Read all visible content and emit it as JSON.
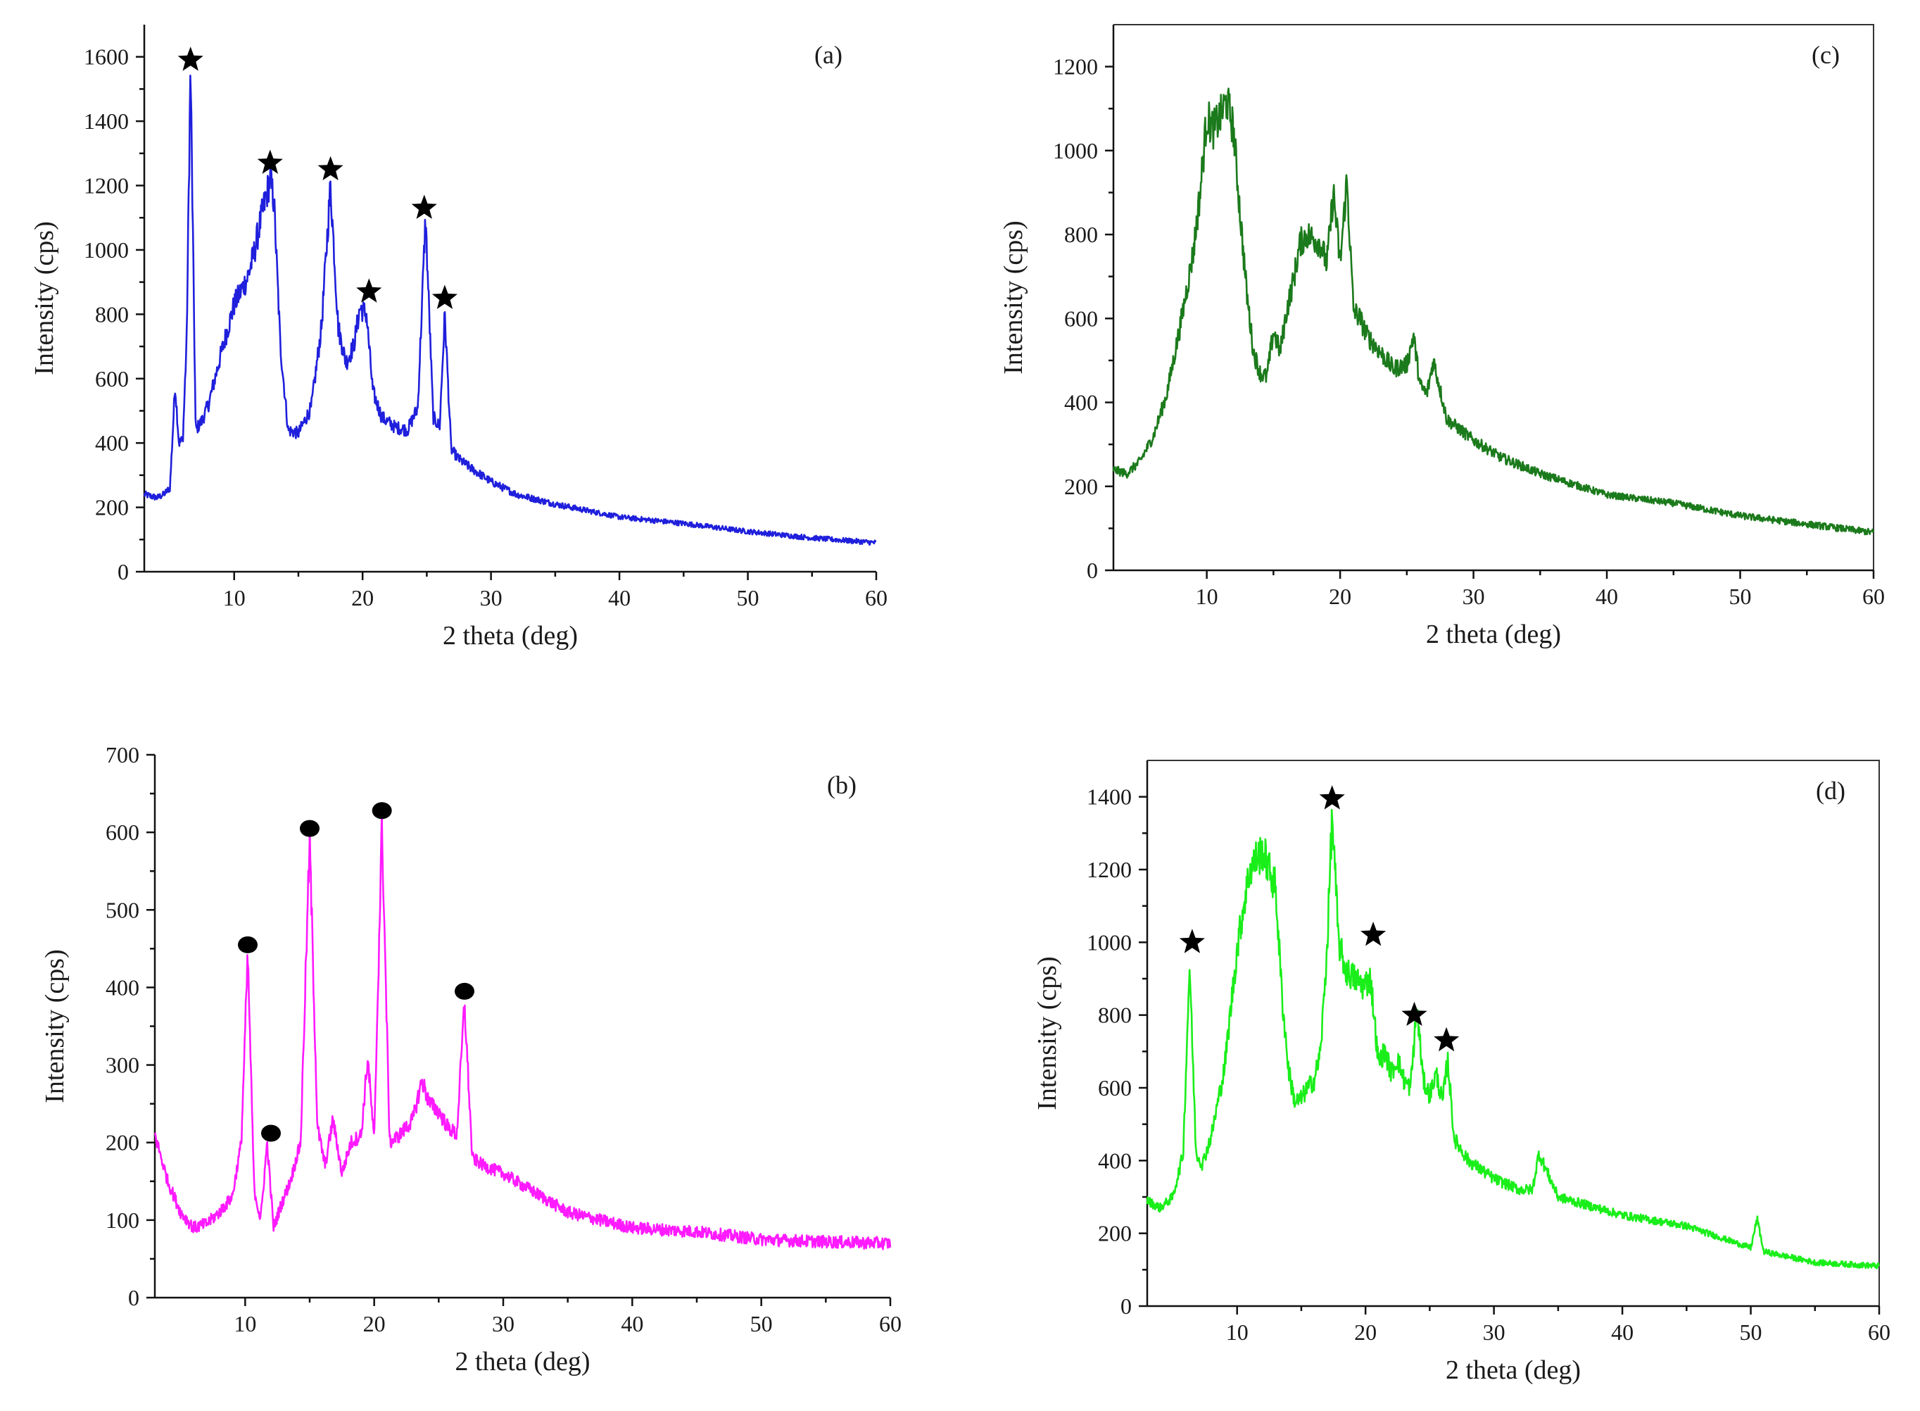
{
  "chart_data": [
    {
      "id": "a",
      "type": "line",
      "panel_label": "(a)",
      "xlabel": "2 theta (deg)",
      "ylabel": "Intensity (cps)",
      "xlim": [
        3,
        60
      ],
      "ylim": [
        0,
        1700
      ],
      "xticks": [
        10,
        20,
        30,
        40,
        50,
        60
      ],
      "yticks": [
        0,
        200,
        400,
        600,
        800,
        1000,
        1200,
        1400,
        1600
      ],
      "color": "#1f1fdc",
      "marker": "star",
      "series": [
        {
          "name": "(a)",
          "x": [
            3,
            3.5,
            4,
            4.5,
            5,
            5.4,
            5.7,
            6.0,
            6.3,
            6.6,
            7.0,
            7.5,
            8,
            9,
            10,
            11,
            11.5,
            12,
            12.4,
            12.8,
            13.1,
            13.6,
            14.2,
            15,
            16,
            16.8,
            17.5,
            18.1,
            18.7,
            19.3,
            19.8,
            20.3,
            20.8,
            21.5,
            22.5,
            23.5,
            24.3,
            24.9,
            25.5,
            26.0,
            26.4,
            26.9,
            27.5,
            28.5,
            30,
            32,
            35,
            40,
            45,
            50,
            55,
            60
          ],
          "y": [
            240,
            235,
            230,
            240,
            260,
            580,
            400,
            410,
            720,
            1570,
            440,
            470,
            520,
            680,
            830,
            910,
            980,
            1080,
            1150,
            1220,
            1150,
            700,
            440,
            430,
            510,
            760,
            1200,
            760,
            650,
            700,
            820,
            800,
            560,
            480,
            450,
            440,
            510,
            1100,
            480,
            450,
            800,
            380,
            350,
            320,
            280,
            240,
            210,
            170,
            150,
            125,
            105,
            90
          ]
        }
      ],
      "annotations": [
        {
          "x": 6.6,
          "y": 1590
        },
        {
          "x": 12.8,
          "y": 1270
        },
        {
          "x": 17.5,
          "y": 1250
        },
        {
          "x": 20.5,
          "y": 870
        },
        {
          "x": 24.8,
          "y": 1130
        },
        {
          "x": 26.4,
          "y": 850
        }
      ]
    },
    {
      "id": "c",
      "type": "line",
      "panel_label": "(c)",
      "xlabel": "2 theta (deg)",
      "ylabel": "Intensity (cps)",
      "xlim": [
        3,
        60
      ],
      "ylim": [
        0,
        1300
      ],
      "xticks": [
        10,
        20,
        30,
        40,
        50,
        60
      ],
      "yticks": [
        0,
        200,
        400,
        600,
        800,
        1000,
        1200
      ],
      "color": "#1b7a1b",
      "marker": "none",
      "series": [
        {
          "name": "(c)",
          "x": [
            3,
            4,
            5,
            6,
            7,
            8,
            9,
            9.5,
            10,
            10.5,
            11,
            11.5,
            12,
            12.5,
            13,
            13.5,
            14,
            14.5,
            15,
            15.5,
            16,
            16.5,
            17,
            17.5,
            18,
            18.5,
            19,
            19.5,
            20,
            20.5,
            21,
            21.5,
            22,
            23,
            24,
            25,
            25.5,
            26,
            26.5,
            27,
            28,
            30,
            32,
            35,
            40,
            45,
            50,
            55,
            60
          ],
          "y": [
            240,
            230,
            260,
            320,
            420,
            580,
            760,
            900,
            1080,
            1050,
            1080,
            1120,
            1050,
            850,
            660,
            520,
            470,
            460,
            570,
            520,
            620,
            690,
            780,
            800,
            790,
            780,
            730,
            900,
            730,
            930,
            620,
            600,
            560,
            520,
            480,
            490,
            560,
            440,
            420,
            500,
            360,
            310,
            270,
            230,
            180,
            160,
            130,
            110,
            90
          ]
        }
      ],
      "annotations": []
    },
    {
      "id": "b",
      "type": "line",
      "panel_label": "(b)",
      "xlabel": "2 theta (deg)",
      "ylabel": "Intensity (cps)",
      "xlim": [
        3,
        60
      ],
      "ylim": [
        0,
        700
      ],
      "xticks": [
        10,
        20,
        30,
        40,
        50,
        60
      ],
      "yticks": [
        0,
        100,
        200,
        300,
        400,
        500,
        600,
        700
      ],
      "color": "#ff1aff",
      "marker": "circle",
      "series": [
        {
          "name": "(b)",
          "x": [
            3,
            4,
            5,
            6,
            7,
            8,
            9,
            9.7,
            10.2,
            10.7,
            11.2,
            11.7,
            12.2,
            12.8,
            13.5,
            14.3,
            15.0,
            15.6,
            16.2,
            16.8,
            17.5,
            18.2,
            19.0,
            19.5,
            20.0,
            20.6,
            21.2,
            22,
            23,
            23.7,
            24.3,
            25,
            25.7,
            26.4,
            27.0,
            27.6,
            28.5,
            30,
            32,
            35,
            40,
            45,
            50,
            55,
            60
          ],
          "y": [
            210,
            150,
            110,
            90,
            95,
            110,
            130,
            200,
            440,
            140,
            100,
            200,
            90,
            120,
            150,
            200,
            590,
            220,
            170,
            230,
            160,
            200,
            210,
            310,
            200,
            610,
            200,
            210,
            230,
            280,
            250,
            240,
            220,
            210,
            380,
            180,
            170,
            160,
            140,
            110,
            90,
            85,
            75,
            72,
            70
          ]
        }
      ],
      "annotations": [
        {
          "x": 10.2,
          "y": 455
        },
        {
          "x": 12.0,
          "y": 212
        },
        {
          "x": 15.0,
          "y": 605
        },
        {
          "x": 20.6,
          "y": 628
        },
        {
          "x": 27.0,
          "y": 395
        }
      ]
    },
    {
      "id": "d",
      "type": "line",
      "panel_label": "(d)",
      "xlabel": "2 theta (deg)",
      "ylabel": "Intensity (cps)",
      "xlim": [
        3,
        60
      ],
      "ylim": [
        0,
        1500
      ],
      "xticks": [
        10,
        20,
        30,
        40,
        50,
        60
      ],
      "yticks": [
        0,
        200,
        400,
        600,
        800,
        1000,
        1200,
        1400
      ],
      "color": "#1aee1a",
      "marker": "star",
      "series": [
        {
          "name": "(d)",
          "x": [
            3,
            4,
            5,
            5.8,
            6.3,
            6.8,
            7.3,
            8,
            9,
            10,
            10.5,
            11,
            11.5,
            12,
            12.5,
            13,
            13.5,
            14,
            14.5,
            15,
            15.5,
            16,
            16.5,
            17.0,
            17.4,
            17.9,
            18.5,
            19.2,
            19.8,
            20.4,
            21,
            21.5,
            22,
            22.5,
            23,
            23.5,
            24,
            24.5,
            25,
            25.5,
            26,
            26.4,
            26.9,
            28,
            30,
            32,
            33,
            33.5,
            35,
            40,
            45,
            50,
            50.5,
            51,
            55,
            60
          ],
          "y": [
            290,
            270,
            300,
            420,
            940,
            420,
            390,
            470,
            650,
            980,
            1100,
            1200,
            1230,
            1250,
            1200,
            1150,
            850,
            650,
            560,
            570,
            600,
            620,
            700,
            980,
            1350,
            1000,
            920,
            900,
            880,
            900,
            670,
            700,
            640,
            680,
            620,
            600,
            820,
            620,
            580,
            640,
            560,
            680,
            460,
            400,
            350,
            320,
            320,
            420,
            300,
            250,
            220,
            160,
            240,
            150,
            120,
            110
          ]
        }
      ],
      "annotations": [
        {
          "x": 6.5,
          "y": 1000
        },
        {
          "x": 17.4,
          "y": 1395
        },
        {
          "x": 20.6,
          "y": 1020
        },
        {
          "x": 23.8,
          "y": 800
        },
        {
          "x": 26.3,
          "y": 730
        }
      ]
    }
  ]
}
